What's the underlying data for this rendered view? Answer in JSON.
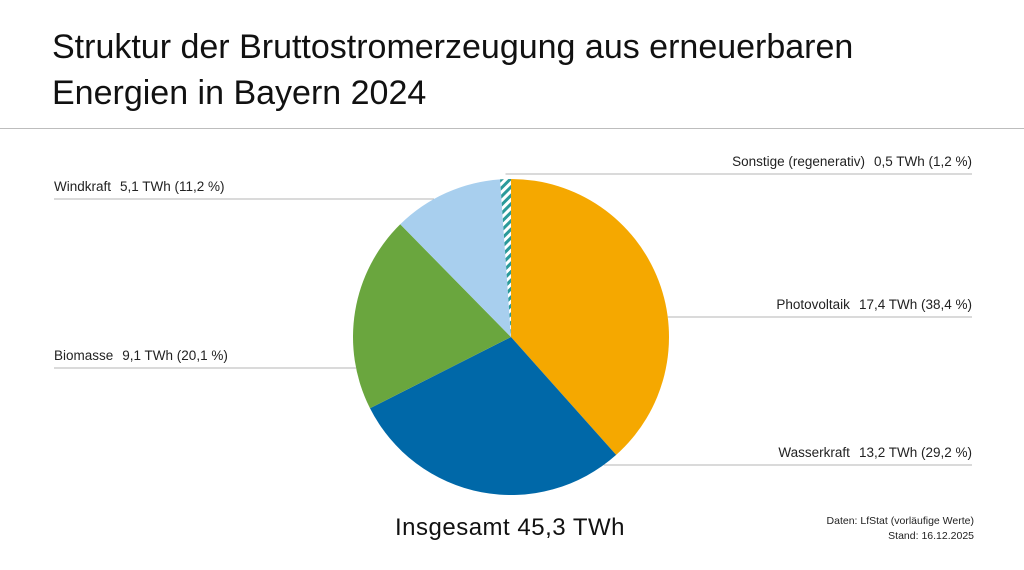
{
  "title_line1": "Struktur der Bruttostromerzeugung aus erneuerbaren",
  "title_line2": "Energien in Bayern 2024",
  "total_label": "Insgesamt 45,3 TWh",
  "source_line1": "Daten: LfStat (vorläufige Werte)",
  "source_line2": "Stand: 16.12.2025",
  "chart_data": {
    "type": "pie",
    "title": "Struktur der Bruttostromerzeugung aus erneuerbaren Energien in Bayern 2024",
    "unit": "TWh",
    "total": 45.3,
    "slices": [
      {
        "name": "Photovoltaik",
        "value": 17.4,
        "percent": 38.4,
        "value_label": "17,4 TWh (38,4 %)",
        "color": "#f5a800",
        "side": "right",
        "pattern": false
      },
      {
        "name": "Wasserkraft",
        "value": 13.2,
        "percent": 29.2,
        "value_label": "13,2 TWh (29,2 %)",
        "color": "#0068a8",
        "side": "right",
        "pattern": false
      },
      {
        "name": "Biomasse",
        "value": 9.1,
        "percent": 20.1,
        "value_label": "9,1 TWh (20,1 %)",
        "color": "#6aa63e",
        "side": "left",
        "pattern": false
      },
      {
        "name": "Windkraft",
        "value": 5.1,
        "percent": 11.2,
        "value_label": "5,1 TWh (11,2 %)",
        "color": "#a8cfee",
        "side": "left",
        "pattern": false
      },
      {
        "name": "Sonstige (regenerativ)",
        "value": 0.5,
        "percent": 1.2,
        "value_label": "0,5 TWh (1,2 %)",
        "color": "#2a9a9a",
        "side": "right",
        "pattern": true
      }
    ]
  }
}
